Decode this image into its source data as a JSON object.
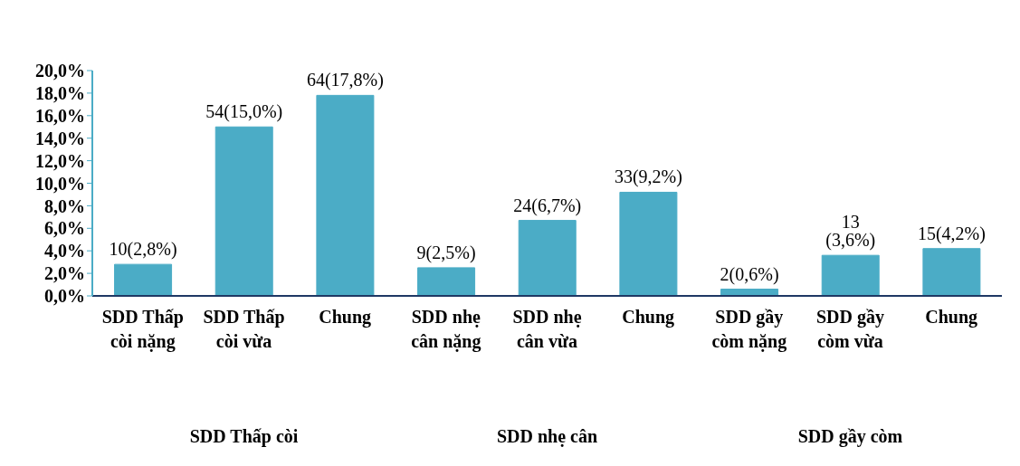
{
  "chart_data": {
    "type": "bar",
    "categories": [
      "SDD Thấp còi nặng",
      "SDD Thấp còi vừa",
      "Chung",
      "SDD nhẹ cân nặng",
      "SDD nhẹ cân vừa",
      "Chung",
      "SDD gầy còm nặng",
      "SDD gầy còm vừa",
      "Chung"
    ],
    "values": [
      2.8,
      15.0,
      17.8,
      2.5,
      6.7,
      9.2,
      0.6,
      3.6,
      4.2
    ],
    "value_labels": [
      "10(2,8%)",
      "54(15,0%)",
      "64(17,8%)",
      "9(2,5%)",
      "24(6,7%)",
      "33(9,2%)",
      "2(0,6%)",
      "13 (3,6%)",
      "15(4,2%)"
    ],
    "colors": [
      "#4bacc6",
      "#4bacc6",
      "#4bacc6",
      "#4bacc6",
      "#4bacc6",
      "#4bacc6",
      "#4bacc6",
      "#4bacc6",
      "#4bacc6"
    ],
    "ylim": [
      0,
      20
    ],
    "yticks": [
      {
        "value": 0,
        "label": "0,0%"
      },
      {
        "value": 2,
        "label": "2,0%"
      },
      {
        "value": 4,
        "label": "4,0%"
      },
      {
        "value": 6,
        "label": "6,0%"
      },
      {
        "value": 8,
        "label": "8,0%"
      },
      {
        "value": 10,
        "label": "10,0%"
      },
      {
        "value": 12,
        "label": "12,0%"
      },
      {
        "value": 14,
        "label": "14,0%"
      },
      {
        "value": 16,
        "label": "16,0%"
      },
      {
        "value": 18,
        "label": "18,0%"
      },
      {
        "value": 20,
        "label": "20,0%"
      }
    ],
    "annotations": [
      "SDD Thấp còi",
      "SDD nhẹ cân",
      "SDD gầy còm"
    ],
    "grid": false,
    "legend": false
  }
}
